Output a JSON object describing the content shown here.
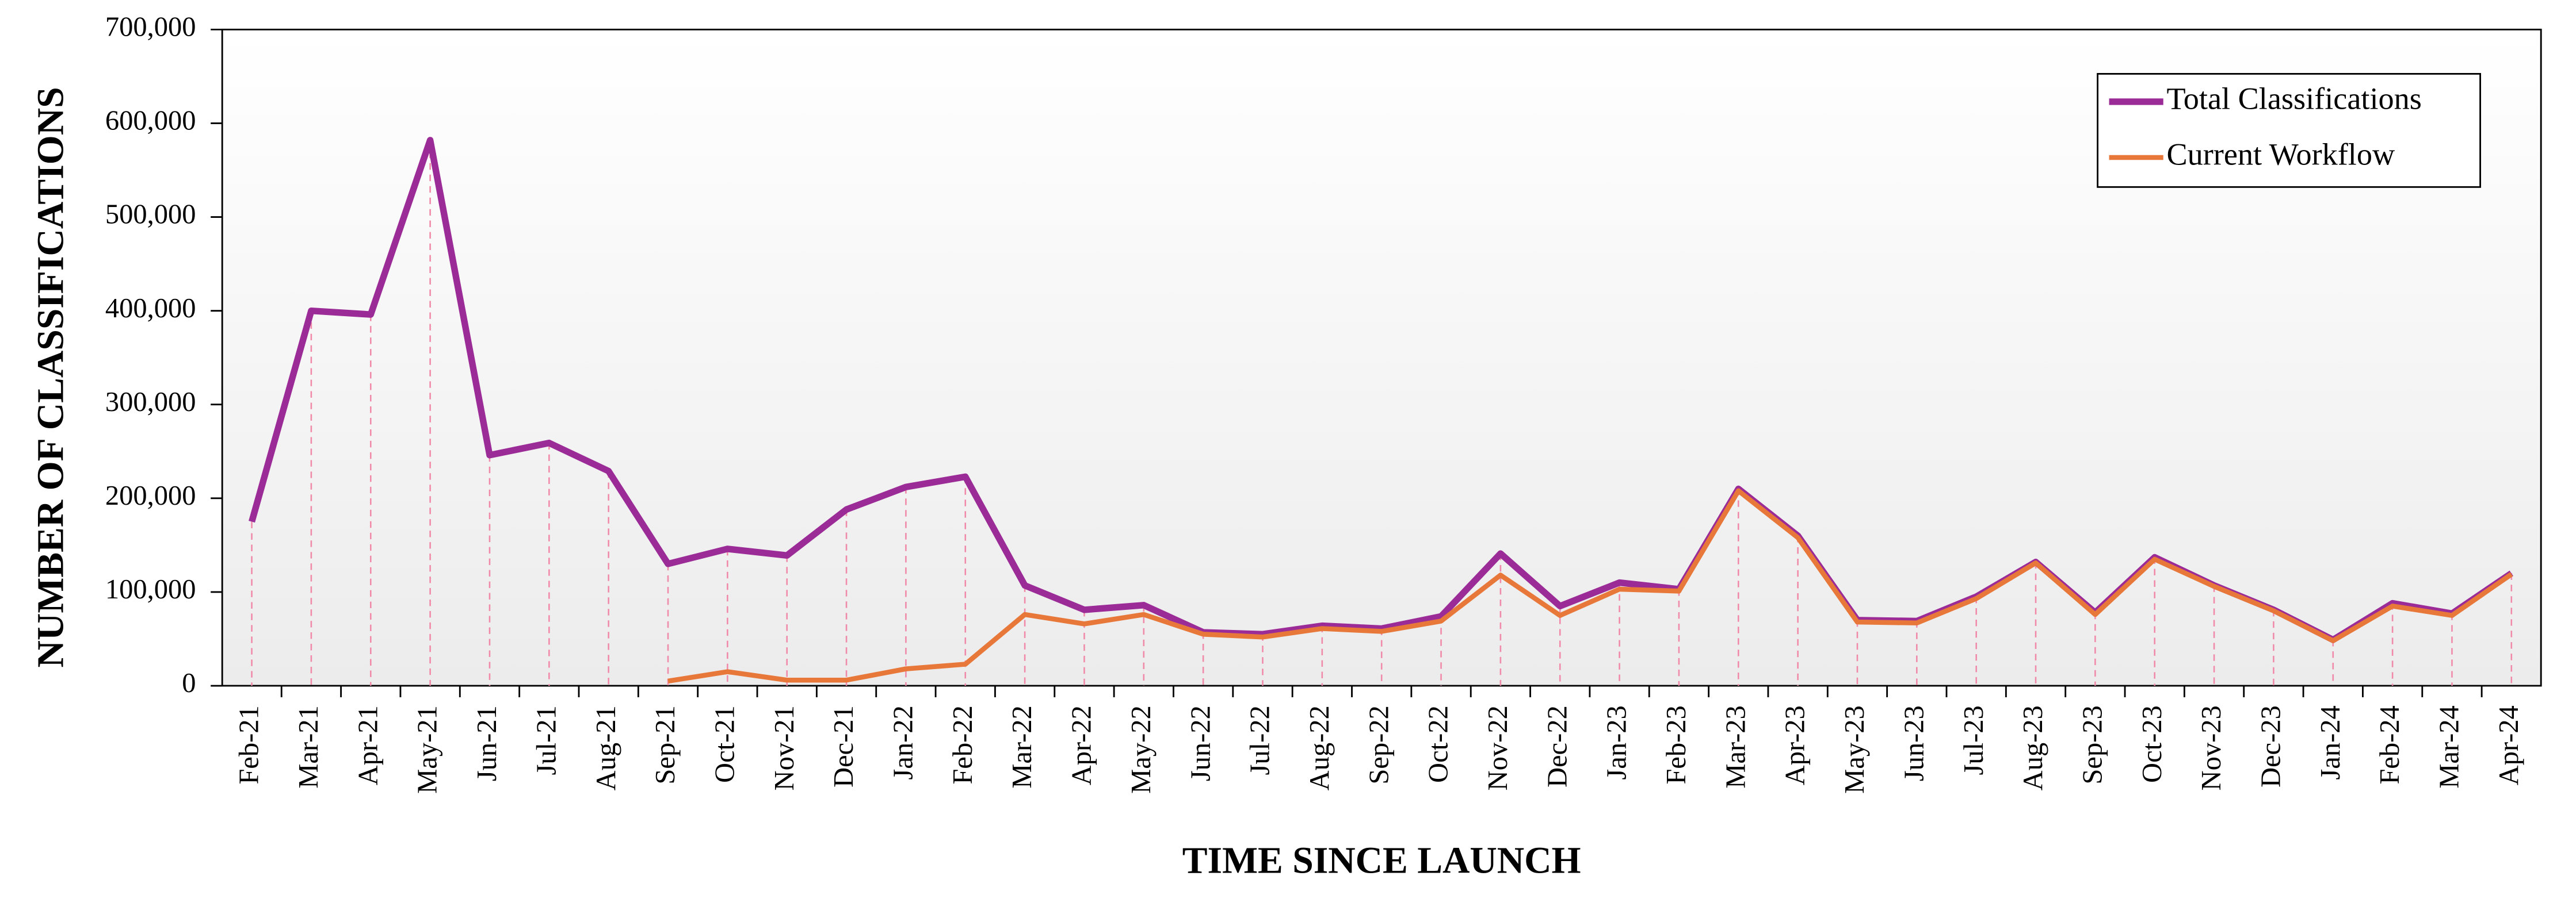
{
  "chart_data": {
    "type": "line",
    "xlabel": "TIME SINCE LAUNCH",
    "ylabel": "NUMBER OF CLASSIFICATIONS",
    "categories": [
      "Feb-21",
      "Mar-21",
      "Apr-21",
      "May-21",
      "Jun-21",
      "Jul-21",
      "Aug-21",
      "Sep-21",
      "Oct-21",
      "Nov-21",
      "Dec-21",
      "Jan-22",
      "Feb-22",
      "Mar-22",
      "Apr-22",
      "May-22",
      "Jun-22",
      "Jul-22",
      "Aug-22",
      "Sep-22",
      "Oct-22",
      "Nov-22",
      "Dec-22",
      "Jan-23",
      "Feb-23",
      "Mar-23",
      "Apr-23",
      "May-23",
      "Jun-23",
      "Jul-23",
      "Aug-23",
      "Sep-23",
      "Oct-23",
      "Nov-23",
      "Dec-23",
      "Jan-24",
      "Feb-24",
      "Mar-24",
      "Apr-24"
    ],
    "series": [
      {
        "name": "Total Classifications",
        "color": "#9b2b96",
        "values": [
          175000,
          400000,
          396000,
          582000,
          246000,
          259000,
          229000,
          130000,
          146000,
          139000,
          188000,
          212000,
          223000,
          107000,
          81000,
          86000,
          57000,
          55000,
          64000,
          61000,
          74000,
          141000,
          85000,
          110000,
          103000,
          210000,
          160000,
          70000,
          69000,
          95000,
          132000,
          78000,
          137000,
          107000,
          81000,
          49000,
          88000,
          77000,
          120000
        ]
      },
      {
        "name": "Current Workflow",
        "color": "#e8783a",
        "values": [
          null,
          null,
          null,
          null,
          null,
          null,
          null,
          5000,
          15000,
          6000,
          6000,
          18000,
          23000,
          76000,
          66000,
          76000,
          55000,
          52000,
          61000,
          58000,
          69000,
          118000,
          75000,
          103000,
          101000,
          208000,
          158000,
          68000,
          67000,
          93000,
          131000,
          76000,
          135000,
          106000,
          80000,
          48000,
          85000,
          75000,
          119000
        ]
      }
    ],
    "ylim": [
      0,
      700000
    ],
    "yticks": [
      0,
      {
        "value": 100000,
        "label": "100,000"
      },
      {
        "value": 200000,
        "label": "200,000"
      },
      {
        "value": 300000,
        "label": "300,000"
      },
      {
        "value": 400000,
        "label": "400,000"
      },
      {
        "value": 500000,
        "label": "500,000"
      },
      {
        "value": 600000,
        "label": "600,000"
      },
      {
        "value": 700000,
        "label": "700,000"
      }
    ],
    "legend": "upper right",
    "drop_lines": true
  }
}
